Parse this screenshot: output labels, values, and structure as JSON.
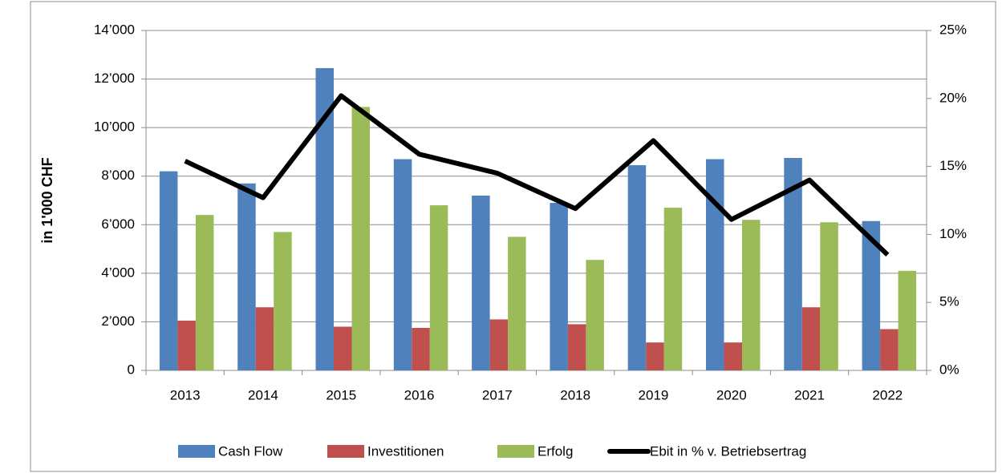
{
  "chart_data": {
    "type": "bar",
    "y_label": "in 1'000 CHF",
    "categories": [
      "2013",
      "2014",
      "2015",
      "2016",
      "2017",
      "2018",
      "2019",
      "2020",
      "2021",
      "2022"
    ],
    "series": [
      {
        "name": "Cash Flow",
        "color": "#4f81bd",
        "values": [
          8200,
          7700,
          12450,
          8700,
          7200,
          6900,
          8450,
          8700,
          8750,
          6150
        ]
      },
      {
        "name": "Investitionen",
        "color": "#c0504d",
        "values": [
          2050,
          2600,
          1800,
          1750,
          2100,
          1900,
          1150,
          1150,
          2600,
          1700
        ]
      },
      {
        "name": "Erfolg",
        "color": "#9bbb59",
        "values": [
          6400,
          5700,
          10850,
          6800,
          5500,
          4550,
          6700,
          6200,
          6100,
          4100
        ]
      },
      {
        "name": "Ebit in % v. Betriebsertrag",
        "color": "#000000",
        "type": "line",
        "axis": "y2",
        "values": [
          15.4,
          12.7,
          20.2,
          15.9,
          14.5,
          11.9,
          16.9,
          11.1,
          14.0,
          8.5
        ]
      }
    ],
    "ylim": [
      0,
      14000
    ],
    "yticks": [
      0,
      {
        "value": 2000,
        "label": "2’000"
      },
      {
        "value": 4000,
        "label": "4’000"
      },
      {
        "value": 6000,
        "label": "6’000"
      },
      {
        "value": 8000,
        "label": "8’000"
      },
      {
        "value": 10000,
        "label": "10’000"
      },
      {
        "value": 12000,
        "label": "12’000"
      },
      {
        "value": 14000,
        "label": "14’000"
      }
    ],
    "y2lim": [
      0,
      25
    ],
    "y2ticks": [
      {
        "value": 0,
        "label": "0%"
      },
      {
        "value": 5,
        "label": "5%"
      },
      {
        "value": 10,
        "label": "10%"
      },
      {
        "value": 15,
        "label": "15%"
      },
      {
        "value": 20,
        "label": "20%"
      },
      {
        "value": 25,
        "label": "25%"
      }
    ],
    "grid": true,
    "legend": "bottom"
  }
}
